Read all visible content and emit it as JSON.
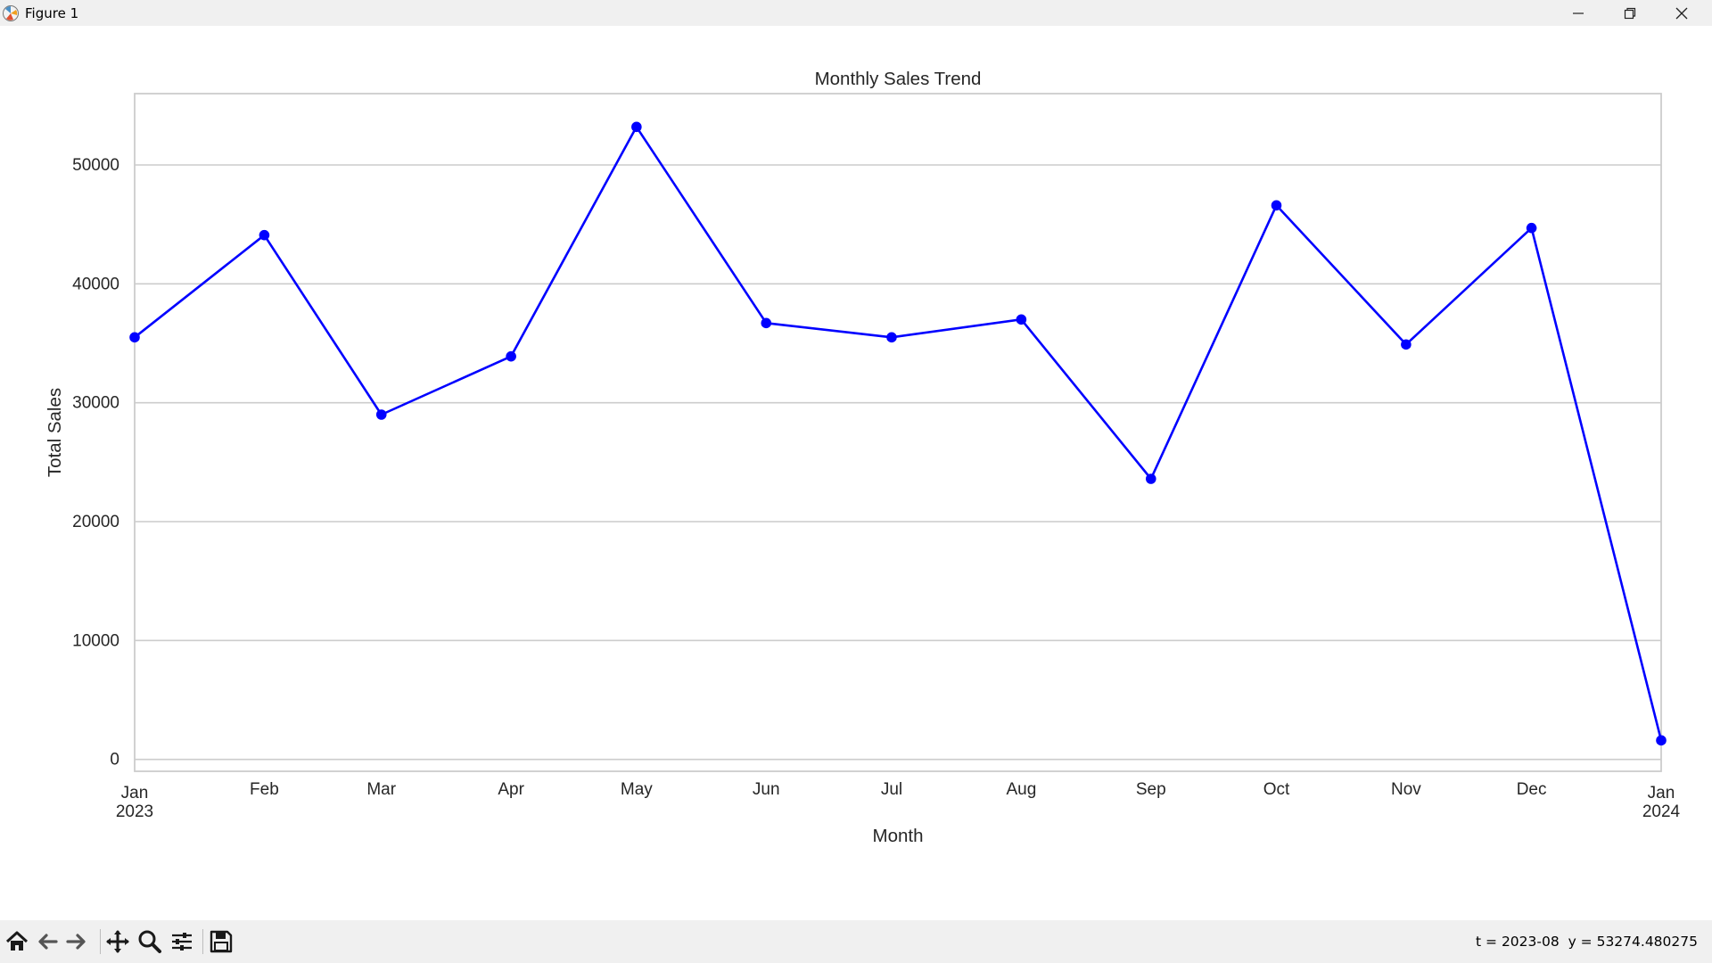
{
  "window": {
    "title": "Figure 1",
    "controls": [
      "minimize",
      "restore",
      "close"
    ]
  },
  "toolbar": {
    "tools": [
      "home-icon",
      "back-icon",
      "forward-icon",
      "pan-icon",
      "zoom-icon",
      "configure-subplots-icon",
      "save-icon"
    ],
    "status": "t = 2023-08  y = 53274.480275"
  },
  "colors": {
    "line": "#0000ff",
    "grid": "#cccccc",
    "spine": "#cccccc",
    "text": "#262626"
  },
  "chart_data": {
    "type": "line",
    "title": "Monthly Sales Trend",
    "xlabel": "Month",
    "ylabel": "Total Sales",
    "x": [
      "2023-01",
      "2023-02",
      "2023-03",
      "2023-04",
      "2023-05",
      "2023-06",
      "2023-07",
      "2023-08",
      "2023-09",
      "2023-10",
      "2023-11",
      "2023-12",
      "2024-01"
    ],
    "series": [
      {
        "values": [
          35500,
          44100,
          29000,
          33900,
          53200,
          36700,
          35500,
          37000,
          23600,
          46600,
          34900,
          44700,
          1600
        ],
        "marker": "circle",
        "color": "#0000ff"
      }
    ],
    "xtick_labels": [
      "Jan\n2023",
      "Feb",
      "Mar",
      "Apr",
      "May",
      "Jun",
      "Jul",
      "Aug",
      "Sep",
      "Oct",
      "Nov",
      "Dec",
      "Jan\n2024"
    ],
    "yticks": [
      0,
      10000,
      20000,
      30000,
      40000,
      50000
    ],
    "xlim": [
      "2023-01",
      "2024-01"
    ],
    "ylim": [
      -1000,
      56000
    ],
    "grid": "horizontal"
  }
}
